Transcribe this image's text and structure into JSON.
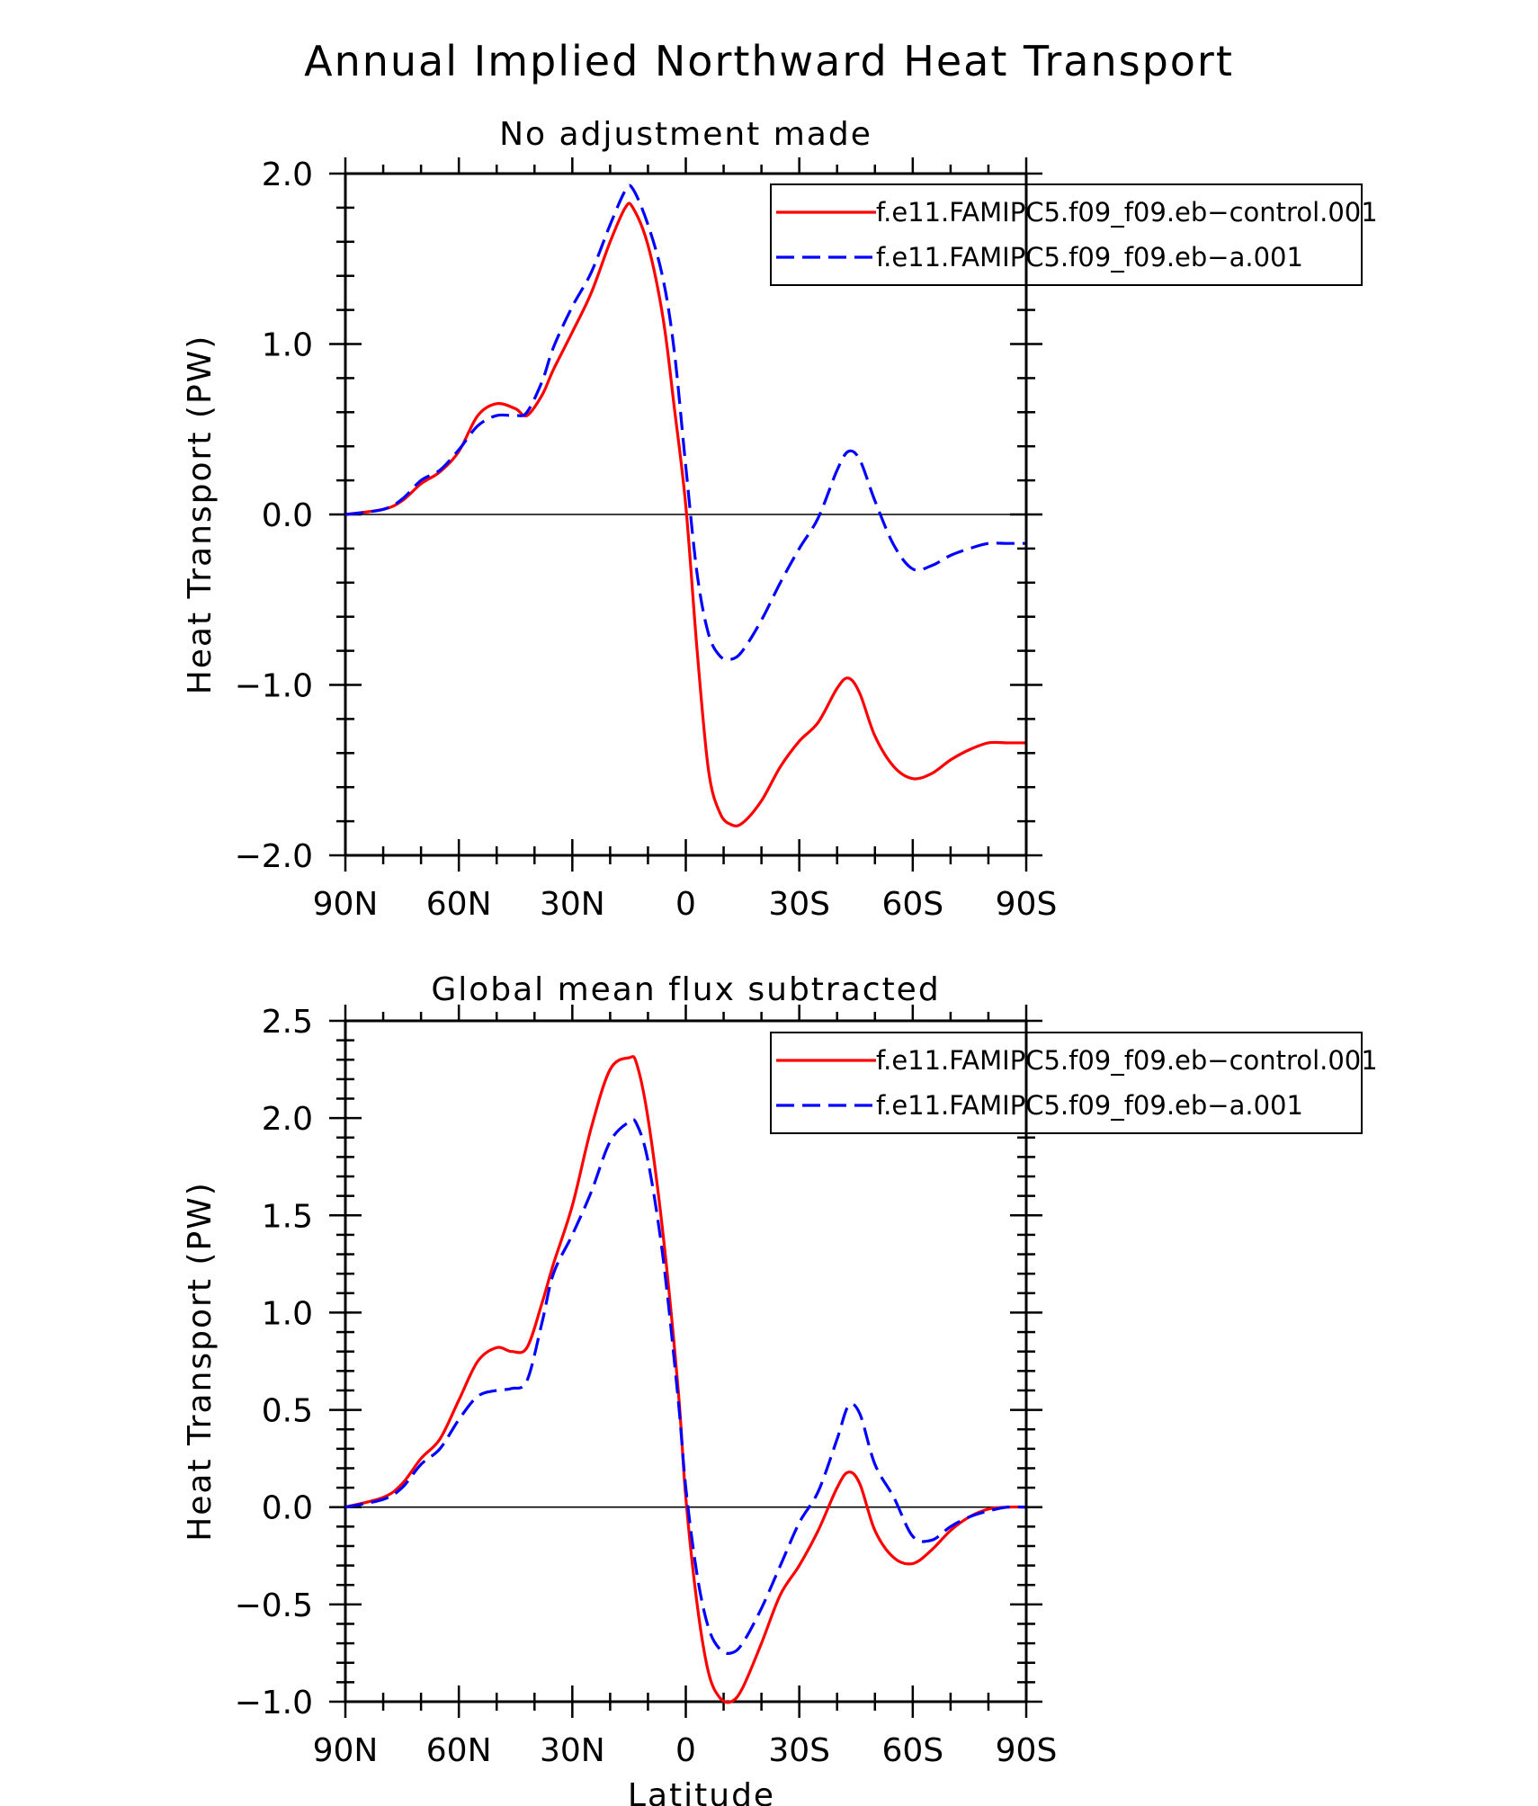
{
  "figure_title": "Annual Implied Northward Heat Transport",
  "xlabel": "Latitude",
  "chart_data": [
    {
      "type": "line",
      "title": "No adjustment made",
      "xlabel": "Latitude",
      "ylabel": "Heat Transport (PW)",
      "x_tick_labels": [
        "90N",
        "60N",
        "30N",
        "0",
        "30S",
        "60S",
        "90S"
      ],
      "x_ticks": [
        -90,
        -60,
        -30,
        0,
        30,
        60,
        90
      ],
      "xlim": [
        -90,
        90
      ],
      "y_tick_labels": [
        "2.0",
        "1.0",
        "0.0",
        "−1.0",
        "−2.0"
      ],
      "y_ticks": [
        2.0,
        1.0,
        0.0,
        -1.0,
        -2.0
      ],
      "ylim": [
        -2.0,
        2.0
      ],
      "x": [
        -90,
        -80,
        -75,
        -70,
        -65,
        -60,
        -55,
        -50,
        -45,
        -42,
        -38,
        -35,
        -30,
        -25,
        -20,
        -16,
        -14,
        -10,
        -6,
        -3,
        0,
        3,
        6,
        9,
        12,
        15,
        20,
        25,
        30,
        35,
        40,
        43,
        46,
        50,
        55,
        60,
        65,
        70,
        75,
        80,
        85,
        90
      ],
      "series": [
        {
          "name": "f.e11.FAMIPC5.f09_f09.eb−control.001",
          "color": "#ff0000",
          "dash": "solid",
          "values": [
            0,
            0.03,
            0.08,
            0.18,
            0.25,
            0.37,
            0.58,
            0.65,
            0.62,
            0.58,
            0.7,
            0.85,
            1.07,
            1.3,
            1.6,
            1.8,
            1.8,
            1.58,
            1.15,
            0.62,
            0.05,
            -0.8,
            -1.5,
            -1.75,
            -1.82,
            -1.81,
            -1.68,
            -1.48,
            -1.33,
            -1.22,
            -1.02,
            -0.96,
            -1.05,
            -1.3,
            -1.48,
            -1.55,
            -1.52,
            -1.44,
            -1.38,
            -1.34,
            -1.34,
            -1.34
          ]
        },
        {
          "name": "f.e11.FAMIPC5.f09_f09.eb−a.001",
          "color": "#0000ff",
          "dash": "dashed",
          "values": [
            0,
            0.03,
            0.09,
            0.2,
            0.26,
            0.38,
            0.52,
            0.58,
            0.58,
            0.6,
            0.78,
            0.98,
            1.22,
            1.42,
            1.7,
            1.9,
            1.91,
            1.7,
            1.38,
            0.95,
            0.28,
            -0.35,
            -0.7,
            -0.83,
            -0.85,
            -0.8,
            -0.62,
            -0.4,
            -0.2,
            -0.02,
            0.26,
            0.37,
            0.32,
            0.08,
            -0.18,
            -0.32,
            -0.3,
            -0.24,
            -0.2,
            -0.17,
            -0.17,
            -0.17
          ]
        }
      ]
    },
    {
      "type": "line",
      "title": "Global mean flux subtracted",
      "xlabel": "Latitude",
      "ylabel": "Heat Transport (PW)",
      "x_tick_labels": [
        "90N",
        "60N",
        "30N",
        "0",
        "30S",
        "60S",
        "90S"
      ],
      "x_ticks": [
        -90,
        -60,
        -30,
        0,
        30,
        60,
        90
      ],
      "xlim": [
        -90,
        90
      ],
      "y_tick_labels": [
        "2.5",
        "2.0",
        "1.5",
        "1.0",
        "0.5",
        "0.0",
        "−0.5",
        "−1.0"
      ],
      "y_ticks": [
        2.5,
        2.0,
        1.5,
        1.0,
        0.5,
        0.0,
        -0.5,
        -1.0
      ],
      "ylim": [
        -1.0,
        2.5
      ],
      "x": [
        -90,
        -80,
        -75,
        -70,
        -65,
        -60,
        -55,
        -50,
        -46,
        -42,
        -38,
        -35,
        -30,
        -25,
        -20,
        -15,
        -13,
        -10,
        -6,
        -2,
        0,
        3,
        6,
        9,
        12,
        15,
        20,
        25,
        30,
        35,
        40,
        43,
        46,
        50,
        55,
        60,
        65,
        70,
        75,
        80,
        85,
        90
      ],
      "series": [
        {
          "name": "f.e11.FAMIPC5.f09_f09.eb−control.001",
          "color": "#ff0000",
          "dash": "solid",
          "values": [
            0,
            0.05,
            0.12,
            0.25,
            0.35,
            0.55,
            0.75,
            0.82,
            0.8,
            0.82,
            1.05,
            1.25,
            1.55,
            1.95,
            2.25,
            2.31,
            2.28,
            2.0,
            1.4,
            0.6,
            0.05,
            -0.5,
            -0.85,
            -0.98,
            -1.0,
            -0.93,
            -0.7,
            -0.45,
            -0.3,
            -0.12,
            0.1,
            0.18,
            0.12,
            -0.12,
            -0.26,
            -0.29,
            -0.22,
            -0.12,
            -0.05,
            -0.01,
            0,
            0
          ]
        },
        {
          "name": "f.e11.FAMIPC5.f09_f09.eb−a.001",
          "color": "#0000ff",
          "dash": "dashed",
          "values": [
            0,
            0.04,
            0.1,
            0.22,
            0.3,
            0.45,
            0.57,
            0.6,
            0.61,
            0.65,
            0.95,
            1.2,
            1.4,
            1.62,
            1.88,
            1.98,
            1.97,
            1.78,
            1.28,
            0.55,
            0.1,
            -0.35,
            -0.62,
            -0.73,
            -0.75,
            -0.7,
            -0.52,
            -0.3,
            -0.08,
            0.08,
            0.35,
            0.52,
            0.48,
            0.22,
            0.05,
            -0.15,
            -0.17,
            -0.1,
            -0.05,
            -0.02,
            0,
            0
          ]
        }
      ]
    }
  ]
}
